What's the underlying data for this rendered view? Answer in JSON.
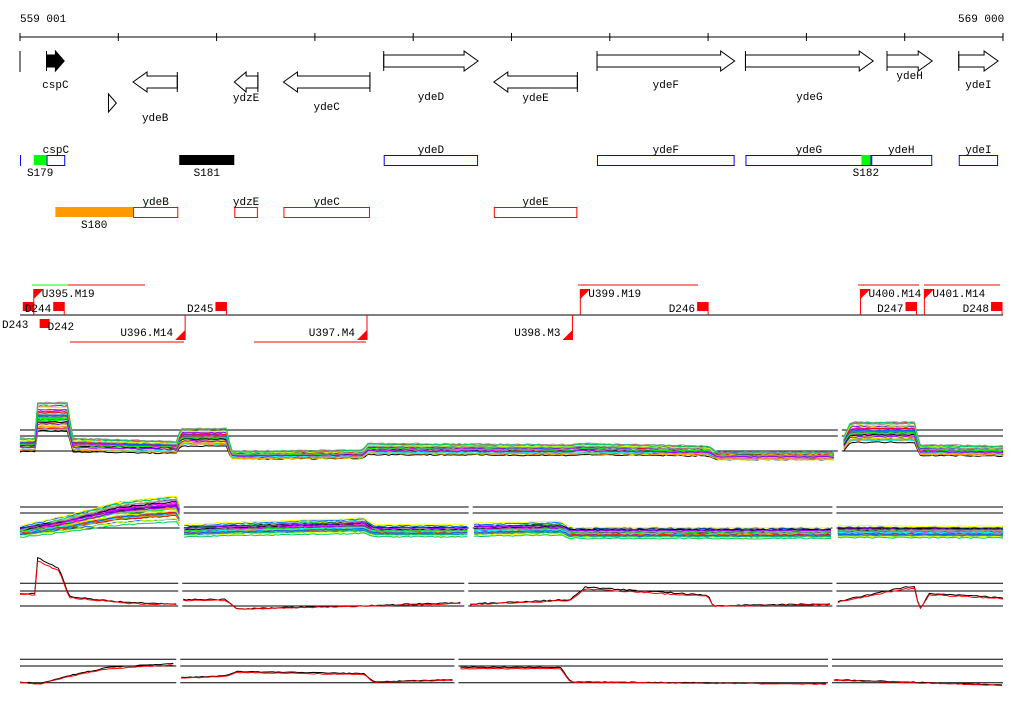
{
  "ruler": {
    "start_label": "559 001",
    "end_label": "569 000",
    "start_bp": 559001,
    "end_bp": 569000,
    "tick_interval_kb": 1
  },
  "genes": [
    {
      "name": "cspC",
      "start_kb": 0.27,
      "end_kb": 0.45,
      "strand": "+",
      "filled": true
    },
    {
      "name": "",
      "start_kb": 0.9,
      "end_kb": 0.98,
      "strand": "+",
      "filled": false
    },
    {
      "name": "ydeB",
      "start_kb": 1.15,
      "end_kb": 1.6,
      "strand": "-"
    },
    {
      "name": "ydzE",
      "start_kb": 2.18,
      "end_kb": 2.42,
      "strand": "-"
    },
    {
      "name": "ydeC",
      "start_kb": 2.68,
      "end_kb": 3.56,
      "strand": "-"
    },
    {
      "name": "ydeD",
      "start_kb": 3.7,
      "end_kb": 4.66,
      "strand": "+"
    },
    {
      "name": "ydeE",
      "start_kb": 4.82,
      "end_kb": 5.67,
      "strand": "-"
    },
    {
      "name": "ydeF",
      "start_kb": 5.87,
      "end_kb": 7.27,
      "strand": "+"
    },
    {
      "name": "ydeG",
      "start_kb": 7.38,
      "end_kb": 8.68,
      "strand": "+"
    },
    {
      "name": "ydeH",
      "start_kb": 8.82,
      "end_kb": 9.28,
      "strand": "+"
    },
    {
      "name": "ydeI",
      "start_kb": 9.55,
      "end_kb": 9.95,
      "strand": "+"
    }
  ],
  "forward_features": [
    {
      "name": "cspC",
      "start_kb": 0.27,
      "end_kb": 0.46,
      "type": "gene"
    },
    {
      "name": "ydeD",
      "start_kb": 3.7,
      "end_kb": 4.66,
      "type": "gene"
    },
    {
      "name": "ydeF",
      "start_kb": 5.87,
      "end_kb": 7.27,
      "type": "gene"
    },
    {
      "name": "ydeG",
      "start_kb": 7.38,
      "end_kb": 8.67,
      "type": "gene"
    },
    {
      "name": "ydeH",
      "start_kb": 8.65,
      "end_kb": 9.28,
      "type": "gene"
    },
    {
      "name": "ydeI",
      "start_kb": 9.55,
      "end_kb": 9.95,
      "type": "gene"
    },
    {
      "name": "S179",
      "start_kb": 0.14,
      "end_kb": 0.27,
      "type": "segment",
      "color": "#00ff00"
    },
    {
      "name": "S181",
      "start_kb": 1.62,
      "end_kb": 2.18,
      "type": "segment",
      "color": "#000000"
    },
    {
      "name": "S182",
      "start_kb": 8.56,
      "end_kb": 8.65,
      "type": "segment",
      "color": "#00ff00"
    }
  ],
  "reverse_features": [
    {
      "name": "ydeB",
      "start_kb": 1.15,
      "end_kb": 1.61,
      "type": "gene"
    },
    {
      "name": "ydzE",
      "start_kb": 2.18,
      "end_kb": 2.42,
      "type": "gene"
    },
    {
      "name": "ydeC",
      "start_kb": 2.68,
      "end_kb": 3.56,
      "type": "gene"
    },
    {
      "name": "ydeE",
      "start_kb": 4.82,
      "end_kb": 5.67,
      "type": "gene"
    },
    {
      "name": "S180",
      "start_kb": 0.36,
      "end_kb": 1.15,
      "type": "segment",
      "color": "#ff9900"
    }
  ],
  "upshifts": [
    {
      "name": "U395.M19",
      "pos_kb": 0.14,
      "side": "top"
    },
    {
      "name": "U396.M14",
      "pos_kb": 1.68,
      "side": "bottom"
    },
    {
      "name": "U397.M4",
      "pos_kb": 3.53,
      "side": "bottom"
    },
    {
      "name": "U398.M3",
      "pos_kb": 5.62,
      "side": "bottom"
    },
    {
      "name": "U399.M19",
      "pos_kb": 5.7,
      "side": "top"
    },
    {
      "name": "U400.M14",
      "pos_kb": 8.55,
      "side": "top"
    },
    {
      "name": "U401.M14",
      "pos_kb": 9.2,
      "side": "top"
    }
  ],
  "downshifts": [
    {
      "name": "D243",
      "pos_kb": 0.14,
      "side": "top"
    },
    {
      "name": "D244",
      "pos_kb": 0.45,
      "side": "top"
    },
    {
      "name": "D242",
      "pos_kb": 0.2,
      "side": "bottom"
    },
    {
      "name": "D245",
      "pos_kb": 2.1,
      "side": "top"
    },
    {
      "name": "D246",
      "pos_kb": 7.0,
      "side": "top"
    },
    {
      "name": "D247",
      "pos_kb": 9.12,
      "side": "top"
    },
    {
      "name": "D248",
      "pos_kb": 9.99,
      "side": "top"
    }
  ],
  "colors": {
    "forward": "#0000ff",
    "reverse": "#ff0000",
    "marker": "#ff0000"
  },
  "chart_data": [
    {
      "type": "line",
      "title": "",
      "n_series": 40,
      "segments_kb": [
        [
          0,
          8.3
        ],
        [
          8.38,
          10
        ]
      ],
      "ref_levels": [
        5,
        4,
        1.5
      ],
      "profile": [
        [
          0,
          3
        ],
        [
          0.15,
          3
        ],
        [
          0.17,
          8.5
        ],
        [
          0.5,
          8.5
        ],
        [
          0.52,
          3
        ],
        [
          1.6,
          2.5
        ],
        [
          1.63,
          4.5
        ],
        [
          2.1,
          4.5
        ],
        [
          2.15,
          1
        ],
        [
          3.5,
          1.2
        ],
        [
          3.52,
          2.2
        ],
        [
          5.6,
          2
        ],
        [
          5.7,
          2.2
        ],
        [
          7.0,
          1.8
        ],
        [
          7.1,
          0.8
        ],
        [
          8.3,
          0.8
        ],
        [
          8.45,
          5.5
        ],
        [
          9.1,
          5.5
        ],
        [
          9.15,
          2
        ],
        [
          10,
          1.8
        ]
      ]
    },
    {
      "type": "line",
      "title": "",
      "n_series": 40,
      "segments_kb": [
        [
          0,
          1.62
        ],
        [
          1.67,
          4.55
        ],
        [
          4.62,
          8.25
        ],
        [
          8.32,
          10
        ]
      ],
      "ref_levels": [
        5.5,
        4.5,
        2
      ],
      "profile": [
        [
          0,
          1.8
        ],
        [
          0.2,
          2.5
        ],
        [
          0.5,
          3.5
        ],
        [
          1.0,
          5.5
        ],
        [
          1.6,
          6.5
        ],
        [
          1.67,
          2
        ],
        [
          2.1,
          2.3
        ],
        [
          3.5,
          3
        ],
        [
          3.6,
          2
        ],
        [
          4.55,
          2
        ],
        [
          4.62,
          2.2
        ],
        [
          5.5,
          2.5
        ],
        [
          5.6,
          1.5
        ],
        [
          8.25,
          1.5
        ],
        [
          8.32,
          1.8
        ],
        [
          10,
          1.7
        ]
      ]
    },
    {
      "type": "line",
      "title": "",
      "n_series": 2,
      "series_colors": [
        "#000000",
        "#ff0000"
      ],
      "segments_kb": [
        [
          0,
          1.6
        ],
        [
          1.66,
          4.5
        ],
        [
          4.58,
          8.25
        ],
        [
          8.32,
          10
        ]
      ],
      "ref_levels": [
        5.3,
        4,
        1.5
      ],
      "profile": [
        [
          0,
          3.5
        ],
        [
          0.15,
          3.5
        ],
        [
          0.18,
          9.3
        ],
        [
          0.4,
          7.5
        ],
        [
          0.5,
          3
        ],
        [
          1.1,
          2
        ],
        [
          1.6,
          1.8
        ],
        [
          1.66,
          2.5
        ],
        [
          2.1,
          2.5
        ],
        [
          2.2,
          1
        ],
        [
          3.5,
          1.5
        ],
        [
          4.5,
          2
        ],
        [
          4.58,
          1.8
        ],
        [
          5.6,
          2.5
        ],
        [
          5.75,
          4.5
        ],
        [
          7.0,
          3.2
        ],
        [
          7.05,
          1.5
        ],
        [
          8.25,
          1.8
        ],
        [
          8.32,
          2.2
        ],
        [
          9.0,
          4.5
        ],
        [
          9.1,
          4.5
        ],
        [
          9.15,
          0.8
        ],
        [
          9.25,
          3.5
        ],
        [
          10,
          2.8
        ]
      ]
    },
    {
      "type": "line",
      "title": "",
      "n_series": 2,
      "series_colors": [
        "#000000",
        "#ff0000"
      ],
      "segments_kb": [
        [
          0,
          1.58
        ],
        [
          1.64,
          4.4
        ],
        [
          4.48,
          8.2
        ],
        [
          8.28,
          10
        ]
      ],
      "ref_levels": [
        7.7,
        6,
        1.8
      ],
      "profile": [
        [
          0,
          2
        ],
        [
          0.2,
          1.5
        ],
        [
          0.5,
          3.5
        ],
        [
          0.9,
          5.5
        ],
        [
          1.58,
          6.5
        ],
        [
          1.64,
          3
        ],
        [
          2.1,
          3.5
        ],
        [
          2.2,
          4.5
        ],
        [
          3.5,
          4
        ],
        [
          3.6,
          2
        ],
        [
          4.4,
          2.5
        ],
        [
          4.48,
          5.5
        ],
        [
          5.5,
          5.5
        ],
        [
          5.6,
          2
        ],
        [
          8.2,
          1.5
        ],
        [
          8.28,
          2.5
        ],
        [
          10,
          1.2
        ]
      ]
    }
  ]
}
